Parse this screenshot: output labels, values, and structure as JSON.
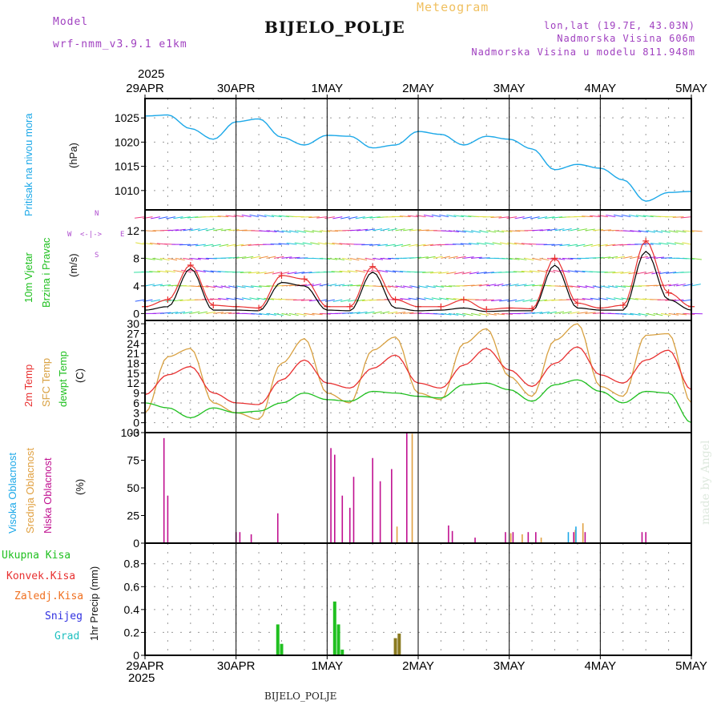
{
  "header": {
    "model_label": "Model",
    "model_name": "wrf-nmm_v3.9.1 e1km",
    "product": "Meteogram",
    "station": "BIJELO_POLJE",
    "lonlat": "lon,lat (19.7E, 43.03N)",
    "elevation": "Nadmorska Visina 606m",
    "model_elevation": "Nadmorska Visina u modelu 811.948m",
    "year_top": "2025",
    "year_bottom": "2025",
    "footer_station": "BIJELO_POLJE",
    "watermark": "made by Angel"
  },
  "colors": {
    "pressure": "#1ca8e8",
    "model": "#a040c0",
    "meteogram": "#f0c060",
    "wind_speed": "#000000",
    "wind_gust": "#e83030",
    "temp2m": "#e83030",
    "sfc_temp": "#d8a040",
    "dewpt": "#20c020",
    "high_cloud": "#1ca8e8",
    "mid_cloud": "#e0a040",
    "low_cloud": "#c01090",
    "precip_total": "#20c020",
    "precip_conv": "#e83030",
    "precip_freezing": "#f07020",
    "snow": "#3030e0",
    "hail": "#20c0c0"
  },
  "labels": {
    "pressure": [
      "Pritisak na nivou mora",
      "(hPa)"
    ],
    "wind": [
      "10m Vjetar",
      "Brzina i Pravac",
      "(m/s)"
    ],
    "compass": [
      "N",
      "W",
      "E",
      "S"
    ],
    "temp": [
      "2m Temp",
      "SFC Temp",
      "dewpt Temp",
      "(C)"
    ],
    "cloud": [
      "Visoka Oblacnost",
      "Srednja Oblacnost",
      "Niska Oblacnost",
      "(%)"
    ],
    "precip_legend": [
      "Ukupna Kisa",
      "Konvek.Kisa",
      "Zaledj.Kisa",
      "Snijeg",
      "Grad"
    ],
    "precip_axis": "1hr Precip (mm)"
  },
  "chart_data": [
    {
      "type": "line",
      "title": "",
      "ylabel": "Pritisak na nivou mora (hPa)",
      "ylim": [
        1006,
        1029
      ],
      "yticks": [
        1010,
        1015,
        1020,
        1025
      ],
      "x_day_labels": [
        "29APR",
        "30APR",
        "1MAY",
        "2MAY",
        "3MAY",
        "4MAY",
        "5MAY"
      ],
      "x_hours": [
        0,
        6,
        12,
        18,
        24,
        30,
        36,
        42,
        48,
        54,
        60,
        66,
        72,
        78,
        84,
        90,
        96,
        102,
        108,
        114,
        120,
        126,
        132,
        138,
        144
      ],
      "series": [
        {
          "name": "Pritisak na nivou mora",
          "values": [
            1025.4,
            1025.6,
            1022.8,
            1020.6,
            1024.2,
            1024.8,
            1021.0,
            1019.4,
            1021.4,
            1021.2,
            1018.8,
            1019.4,
            1022.2,
            1021.6,
            1019.4,
            1021.2,
            1020.6,
            1018.6,
            1014.3,
            1015.4,
            1014.6,
            1012.2,
            1007.8,
            1009.6,
            1009.8
          ]
        }
      ]
    },
    {
      "type": "line",
      "title": "",
      "ylabel": "10m Vjetar Brzina i Pravac (m/s)",
      "ylim": [
        -1,
        15
      ],
      "yticks": [
        0,
        4,
        8,
        12
      ],
      "grid": true,
      "x_hours": [
        0,
        6,
        12,
        18,
        24,
        30,
        36,
        42,
        48,
        54,
        60,
        66,
        72,
        78,
        84,
        90,
        96,
        102,
        108,
        114,
        120,
        126,
        132,
        138,
        144
      ],
      "series": [
        {
          "name": "speed",
          "values": [
            0.5,
            1.0,
            6.5,
            0.5,
            0.5,
            0.4,
            4.5,
            4.0,
            0.5,
            0.4,
            6.0,
            0.8,
            0.4,
            0.5,
            0.8,
            0.3,
            0.4,
            0.4,
            7.0,
            0.8,
            0.5,
            0.5,
            9.0,
            2.0,
            0.5
          ]
        },
        {
          "name": "gust",
          "values": [
            1.0,
            2.0,
            7.0,
            1.2,
            1.0,
            0.8,
            5.5,
            5.0,
            1.0,
            1.0,
            6.8,
            2.0,
            1.0,
            1.0,
            2.0,
            0.6,
            0.8,
            0.7,
            8.0,
            1.5,
            0.8,
            1.2,
            10.5,
            3.0,
            1.0
          ]
        }
      ]
    },
    {
      "type": "line",
      "title": "",
      "ylabel": "(C)",
      "ylim": [
        -3,
        31
      ],
      "yticks": [
        -3,
        0,
        3,
        6,
        9,
        12,
        15,
        18,
        21,
        24,
        27,
        30
      ],
      "grid": true,
      "x_hours": [
        0,
        6,
        12,
        18,
        24,
        30,
        36,
        42,
        48,
        54,
        60,
        66,
        72,
        78,
        84,
        90,
        96,
        102,
        108,
        114,
        120,
        126,
        132,
        138,
        144
      ],
      "series": [
        {
          "name": "2m Temp",
          "values": [
            8.5,
            14.5,
            17.0,
            9.0,
            6.0,
            5.5,
            13.0,
            19.0,
            12.0,
            10.5,
            16.5,
            20.5,
            12.0,
            10.5,
            17.5,
            22.5,
            16.0,
            11.0,
            18.0,
            23.0,
            14.5,
            12.0,
            19.0,
            22.0,
            10.0
          ]
        },
        {
          "name": "SFC Temp",
          "values": [
            3.0,
            20.0,
            22.5,
            6.0,
            3.0,
            1.0,
            18.0,
            25.5,
            9.0,
            6.0,
            22.0,
            26.0,
            9.0,
            7.0,
            24.0,
            28.5,
            14.0,
            8.0,
            25.0,
            30.0,
            11.0,
            8.0,
            26.5,
            27.0,
            6.0
          ]
        },
        {
          "name": "dewpt Temp",
          "values": [
            6.0,
            4.5,
            1.5,
            4.5,
            3.0,
            3.5,
            6.0,
            9.0,
            7.0,
            6.5,
            9.5,
            9.0,
            8.0,
            7.5,
            11.5,
            12.0,
            10.0,
            6.5,
            11.5,
            13.0,
            9.5,
            6.0,
            9.5,
            9.0,
            0.0
          ]
        }
      ]
    },
    {
      "type": "bar",
      "title": "",
      "ylabel": "(%)",
      "ylim": [
        0,
        100
      ],
      "yticks": [
        0,
        25,
        50,
        75,
        100
      ],
      "series": [
        {
          "name": "Niska Oblacnost",
          "points": [
            [
              5,
              95
            ],
            [
              6,
              43
            ],
            [
              24,
              10
            ],
            [
              25,
              10
            ],
            [
              28,
              8
            ],
            [
              35,
              27
            ],
            [
              49,
              86
            ],
            [
              50,
              80
            ],
            [
              52,
              43
            ],
            [
              54,
              32
            ],
            [
              55,
              60
            ],
            [
              60,
              77
            ],
            [
              62,
              56
            ],
            [
              65,
              67
            ],
            [
              69,
              100
            ],
            [
              80,
              16
            ],
            [
              81,
              11
            ],
            [
              87,
              5
            ],
            [
              95,
              10
            ],
            [
              97,
              10
            ],
            [
              101,
              10
            ],
            [
              103,
              10
            ],
            [
              113,
              10
            ],
            [
              116,
              10
            ],
            [
              131,
              10
            ],
            [
              132,
              10
            ]
          ]
        },
        {
          "name": "Srednja Oblacnost",
          "points": [
            [
              66,
              15
            ],
            [
              70,
              99
            ],
            [
              96,
              9
            ],
            [
              99,
              8
            ],
            [
              104,
              5
            ],
            [
              113,
              12
            ],
            [
              115,
              18
            ]
          ]
        },
        {
          "name": "Visoka Oblacnost",
          "points": [
            [
              112,
              10
            ],
            [
              114,
              15
            ]
          ]
        }
      ]
    },
    {
      "type": "bar",
      "title": "",
      "ylabel": "1hr Precip (mm)",
      "ylim": [
        0,
        0.98
      ],
      "yticks": [
        0,
        0.2,
        0.4,
        0.6,
        0.8
      ],
      "series": [
        {
          "name": "Ukupna Kisa",
          "points": [
            [
              35,
              0.27
            ],
            [
              36,
              0.1
            ],
            [
              50,
              0.47
            ],
            [
              51,
              0.27
            ],
            [
              52,
              0.05
            ],
            [
              66,
              0.15
            ],
            [
              67,
              0.19
            ]
          ]
        },
        {
          "name": "Konvek.Kisa",
          "points": []
        },
        {
          "name": "Zaledj.Kisa",
          "points": []
        },
        {
          "name": "Snijeg",
          "points": []
        },
        {
          "name": "Grad",
          "points": []
        }
      ]
    }
  ]
}
